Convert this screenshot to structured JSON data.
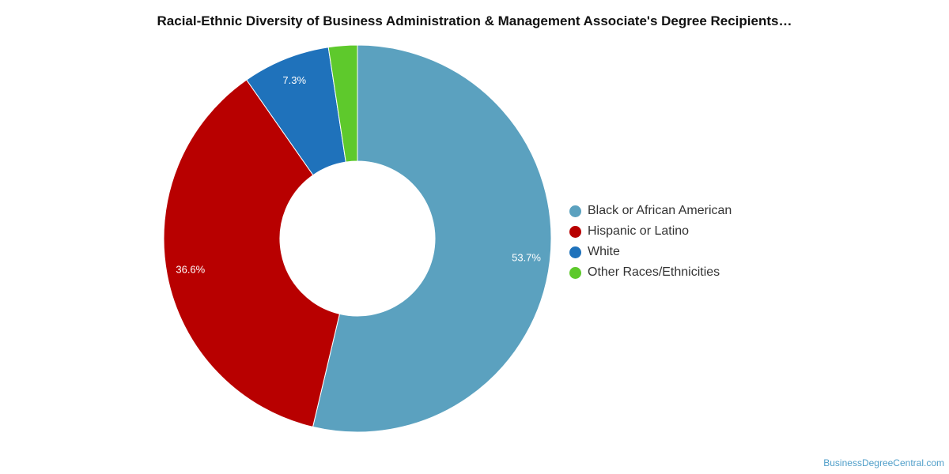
{
  "page": {
    "watermark": "BusinessDegreeCentral.com"
  },
  "chart_data": {
    "type": "pie",
    "donut": true,
    "title": "Racial-Ethnic Diversity of Business Administration & Management Associate's Degree Recipients…",
    "legend_position": "right",
    "slices": [
      {
        "label": "Black or African American",
        "value": 53.7,
        "display": "53.7%",
        "color": "#5ba1bf"
      },
      {
        "label": "Hispanic or Latino",
        "value": 36.6,
        "display": "36.6%",
        "color": "#b80000"
      },
      {
        "label": "White",
        "value": 7.3,
        "display": "7.3%",
        "color": "#1f72bb"
      },
      {
        "label": "Other Races/Ethnicities",
        "value": 2.4,
        "display": "",
        "color": "#5ec92c"
      }
    ]
  }
}
